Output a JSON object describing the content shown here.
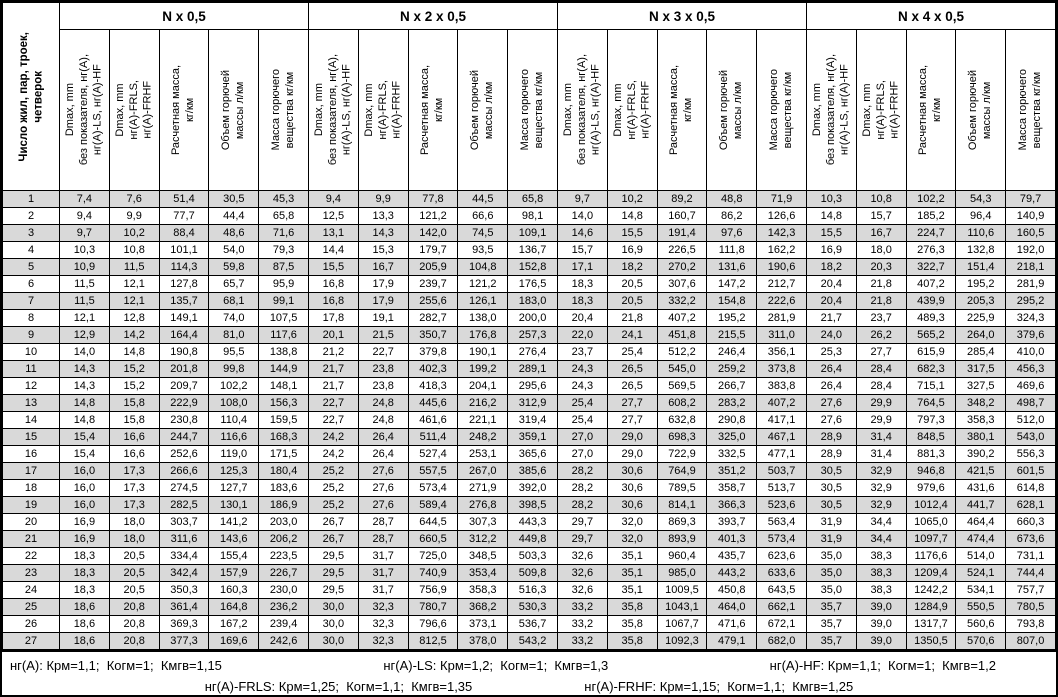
{
  "table": {
    "corner_header": "Число жил, пар, троек,\nчетверок",
    "groups": [
      {
        "title": "N x 0,5"
      },
      {
        "title": "N x 2 x 0,5"
      },
      {
        "title": "N x 3 x 0,5"
      },
      {
        "title": "N x 4 x 0,5"
      }
    ],
    "sub_headers": [
      "Dmax, mm\nбез показателя, нг(А),\nнг(А)-LS, нг(А)-HF",
      "Dmax, mm\nнг(А)-FRLS,\nнг(А)-FRHF",
      "Расчетная масса,\nкг/км",
      "Объем горючей\nмассы л/км",
      "Масса горючего\nвещества кг/км"
    ],
    "rows": [
      [
        "1",
        "7,4",
        "7,6",
        "51,4",
        "30,5",
        "45,3",
        "9,4",
        "9,9",
        "77,8",
        "44,5",
        "65,8",
        "9,7",
        "10,2",
        "89,2",
        "48,8",
        "71,9",
        "10,3",
        "10,8",
        "102,2",
        "54,3",
        "79,7"
      ],
      [
        "2",
        "9,4",
        "9,9",
        "77,7",
        "44,4",
        "65,8",
        "12,5",
        "13,3",
        "121,2",
        "66,6",
        "98,1",
        "14,0",
        "14,8",
        "160,7",
        "86,2",
        "126,6",
        "14,8",
        "15,7",
        "185,2",
        "96,4",
        "140,9"
      ],
      [
        "3",
        "9,7",
        "10,2",
        "88,4",
        "48,6",
        "71,6",
        "13,1",
        "14,3",
        "142,0",
        "74,5",
        "109,1",
        "14,6",
        "15,5",
        "191,4",
        "97,6",
        "142,3",
        "15,5",
        "16,7",
        "224,7",
        "110,6",
        "160,5"
      ],
      [
        "4",
        "10,3",
        "10,8",
        "101,1",
        "54,0",
        "79,3",
        "14,4",
        "15,3",
        "179,7",
        "93,5",
        "136,7",
        "15,7",
        "16,9",
        "226,5",
        "111,8",
        "162,2",
        "16,9",
        "18,0",
        "276,3",
        "132,8",
        "192,0"
      ],
      [
        "5",
        "10,9",
        "11,5",
        "114,3",
        "59,8",
        "87,5",
        "15,5",
        "16,7",
        "205,9",
        "104,8",
        "152,8",
        "17,1",
        "18,2",
        "270,2",
        "131,6",
        "190,6",
        "18,2",
        "20,3",
        "322,7",
        "151,4",
        "218,1"
      ],
      [
        "6",
        "11,5",
        "12,1",
        "127,8",
        "65,7",
        "95,9",
        "16,8",
        "17,9",
        "239,7",
        "121,2",
        "176,5",
        "18,3",
        "20,5",
        "307,6",
        "147,2",
        "212,7",
        "20,4",
        "21,8",
        "407,2",
        "195,2",
        "281,9"
      ],
      [
        "7",
        "11,5",
        "12,1",
        "135,7",
        "68,1",
        "99,1",
        "16,8",
        "17,9",
        "255,6",
        "126,1",
        "183,0",
        "18,3",
        "20,5",
        "332,2",
        "154,8",
        "222,6",
        "20,4",
        "21,8",
        "439,9",
        "205,3",
        "295,2"
      ],
      [
        "8",
        "12,1",
        "12,8",
        "149,1",
        "74,0",
        "107,5",
        "17,8",
        "19,1",
        "282,7",
        "138,0",
        "200,0",
        "20,4",
        "21,8",
        "407,2",
        "195,2",
        "281,9",
        "21,7",
        "23,7",
        "489,3",
        "225,9",
        "324,3"
      ],
      [
        "9",
        "12,9",
        "14,2",
        "164,4",
        "81,0",
        "117,6",
        "20,1",
        "21,5",
        "350,7",
        "176,8",
        "257,3",
        "22,0",
        "24,1",
        "451,8",
        "215,5",
        "311,0",
        "24,0",
        "26,2",
        "565,2",
        "264,0",
        "379,6"
      ],
      [
        "10",
        "14,0",
        "14,8",
        "190,8",
        "95,5",
        "138,8",
        "21,2",
        "22,7",
        "379,8",
        "190,1",
        "276,4",
        "23,7",
        "25,4",
        "512,2",
        "246,4",
        "356,1",
        "25,3",
        "27,7",
        "615,9",
        "285,4",
        "410,0"
      ],
      [
        "11",
        "14,3",
        "15,2",
        "201,8",
        "99,8",
        "144,9",
        "21,7",
        "23,8",
        "402,3",
        "199,2",
        "289,1",
        "24,3",
        "26,5",
        "545,0",
        "259,2",
        "373,8",
        "26,4",
        "28,4",
        "682,3",
        "317,5",
        "456,3"
      ],
      [
        "12",
        "14,3",
        "15,2",
        "209,7",
        "102,2",
        "148,1",
        "21,7",
        "23,8",
        "418,3",
        "204,1",
        "295,6",
        "24,3",
        "26,5",
        "569,5",
        "266,7",
        "383,8",
        "26,4",
        "28,4",
        "715,1",
        "327,5",
        "469,6"
      ],
      [
        "13",
        "14,8",
        "15,8",
        "222,9",
        "108,0",
        "156,3",
        "22,7",
        "24,8",
        "445,6",
        "216,2",
        "312,9",
        "25,4",
        "27,7",
        "608,2",
        "283,2",
        "407,2",
        "27,6",
        "29,9",
        "764,5",
        "348,2",
        "498,7"
      ],
      [
        "14",
        "14,8",
        "15,8",
        "230,8",
        "110,4",
        "159,5",
        "22,7",
        "24,8",
        "461,6",
        "221,1",
        "319,4",
        "25,4",
        "27,7",
        "632,8",
        "290,8",
        "417,1",
        "27,6",
        "29,9",
        "797,3",
        "358,3",
        "512,0"
      ],
      [
        "15",
        "15,4",
        "16,6",
        "244,7",
        "116,6",
        "168,3",
        "24,2",
        "26,4",
        "511,4",
        "248,2",
        "359,1",
        "27,0",
        "29,0",
        "698,3",
        "325,0",
        "467,1",
        "28,9",
        "31,4",
        "848,5",
        "380,1",
        "543,0"
      ],
      [
        "16",
        "15,4",
        "16,6",
        "252,6",
        "119,0",
        "171,5",
        "24,2",
        "26,4",
        "527,4",
        "253,1",
        "365,6",
        "27,0",
        "29,0",
        "722,9",
        "332,5",
        "477,1",
        "28,9",
        "31,4",
        "881,3",
        "390,2",
        "556,3"
      ],
      [
        "17",
        "16,0",
        "17,3",
        "266,6",
        "125,3",
        "180,4",
        "25,2",
        "27,6",
        "557,5",
        "267,0",
        "385,6",
        "28,2",
        "30,6",
        "764,9",
        "351,2",
        "503,7",
        "30,5",
        "32,9",
        "946,8",
        "421,5",
        "601,5"
      ],
      [
        "18",
        "16,0",
        "17,3",
        "274,5",
        "127,7",
        "183,6",
        "25,2",
        "27,6",
        "573,4",
        "271,9",
        "392,0",
        "28,2",
        "30,6",
        "789,5",
        "358,7",
        "513,7",
        "30,5",
        "32,9",
        "979,6",
        "431,6",
        "614,8"
      ],
      [
        "19",
        "16,0",
        "17,3",
        "282,5",
        "130,1",
        "186,9",
        "25,2",
        "27,6",
        "589,4",
        "276,8",
        "398,5",
        "28,2",
        "30,6",
        "814,1",
        "366,3",
        "523,6",
        "30,5",
        "32,9",
        "1012,4",
        "441,7",
        "628,1"
      ],
      [
        "20",
        "16,9",
        "18,0",
        "303,7",
        "141,2",
        "203,0",
        "26,7",
        "28,7",
        "644,5",
        "307,3",
        "443,3",
        "29,7",
        "32,0",
        "869,3",
        "393,7",
        "563,4",
        "31,9",
        "34,4",
        "1065,0",
        "464,4",
        "660,3"
      ],
      [
        "21",
        "16,9",
        "18,0",
        "311,6",
        "143,6",
        "206,2",
        "26,7",
        "28,7",
        "660,5",
        "312,2",
        "449,8",
        "29,7",
        "32,0",
        "893,9",
        "401,3",
        "573,4",
        "31,9",
        "34,4",
        "1097,7",
        "474,4",
        "673,6"
      ],
      [
        "22",
        "18,3",
        "20,5",
        "334,4",
        "155,4",
        "223,5",
        "29,5",
        "31,7",
        "725,0",
        "348,5",
        "503,3",
        "32,6",
        "35,1",
        "960,4",
        "435,7",
        "623,6",
        "35,0",
        "38,3",
        "1176,6",
        "514,0",
        "731,1"
      ],
      [
        "23",
        "18,3",
        "20,5",
        "342,4",
        "157,9",
        "226,7",
        "29,5",
        "31,7",
        "740,9",
        "353,4",
        "509,8",
        "32,6",
        "35,1",
        "985,0",
        "443,2",
        "633,6",
        "35,0",
        "38,3",
        "1209,4",
        "524,1",
        "744,4"
      ],
      [
        "24",
        "18,3",
        "20,5",
        "350,3",
        "160,3",
        "230,0",
        "29,5",
        "31,7",
        "756,9",
        "358,3",
        "516,3",
        "32,6",
        "35,1",
        "1009,5",
        "450,8",
        "643,5",
        "35,0",
        "38,3",
        "1242,2",
        "534,1",
        "757,7"
      ],
      [
        "25",
        "18,6",
        "20,8",
        "361,4",
        "164,8",
        "236,2",
        "30,0",
        "32,3",
        "780,7",
        "368,2",
        "530,3",
        "33,2",
        "35,8",
        "1043,1",
        "464,0",
        "662,1",
        "35,7",
        "39,0",
        "1284,9",
        "550,5",
        "780,5"
      ],
      [
        "26",
        "18,6",
        "20,8",
        "369,3",
        "167,2",
        "239,4",
        "30,0",
        "32,3",
        "796,6",
        "373,1",
        "536,7",
        "33,2",
        "35,8",
        "1067,7",
        "471,6",
        "672,1",
        "35,7",
        "39,0",
        "1317,7",
        "560,6",
        "793,8"
      ],
      [
        "27",
        "18,6",
        "20,8",
        "377,3",
        "169,6",
        "242,6",
        "30,0",
        "32,3",
        "812,5",
        "378,0",
        "543,2",
        "33,2",
        "35,8",
        "1092,3",
        "479,1",
        "682,0",
        "35,7",
        "39,0",
        "1350,5",
        "570,6",
        "807,0"
      ]
    ]
  },
  "footer": {
    "line1": [
      "нг(А): Крм=1,1;  Когм=1;  Кмгв=1,15",
      "нг(А)-LS: Крм=1,2;  Когм=1;  Кмгв=1,3",
      "нг(А)-HF: Крм=1,1;  Когм=1;  Кмгв=1,2"
    ],
    "line2": [
      "нг(А)-FRLS: Крм=1,25;  Когм=1,1;  Кмгв=1,35",
      "нг(А)-FRHF: Крм=1,15;  Когм=1,1;  Кмгв=1,25"
    ]
  },
  "colors": {
    "row_shade": "#d9d9d9",
    "border": "#000000",
    "background": "#ffffff"
  }
}
